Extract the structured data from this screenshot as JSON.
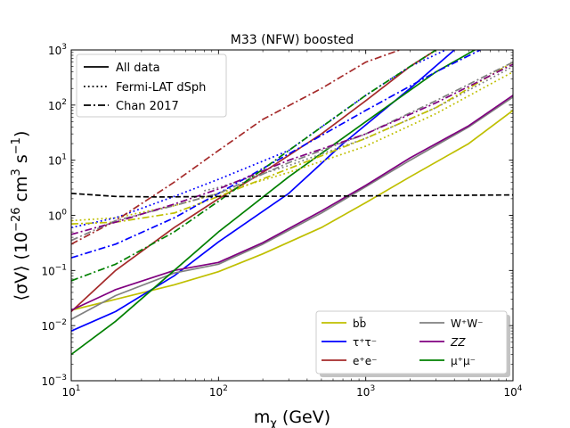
{
  "chart_data": {
    "type": "line",
    "title": "M33 (NFW) boosted",
    "xlabel": "m",
    "xlabel_sub": "χ",
    "xlabel_unit": " (GeV)",
    "ylabel_main": "⟨σV⟩ (10",
    "ylabel_exp1": "−26",
    "ylabel_mid": " cm",
    "ylabel_exp2": "3",
    "ylabel_mid2": " s",
    "ylabel_exp3": "−1",
    "ylabel_end": ")",
    "x_scale": "log",
    "y_scale": "log",
    "xlim": [
      10,
      10000
    ],
    "ylim": [
      0.001,
      1000
    ],
    "x_ticks": [
      {
        "value": 10,
        "base": "10",
        "exp": "1"
      },
      {
        "value": 100,
        "base": "10",
        "exp": "2"
      },
      {
        "value": 1000,
        "base": "10",
        "exp": "3"
      },
      {
        "value": 10000,
        "base": "10",
        "exp": "4"
      }
    ],
    "y_ticks": [
      {
        "value": 0.001,
        "base": "10",
        "exp": "−3"
      },
      {
        "value": 0.01,
        "base": "10",
        "exp": "−2"
      },
      {
        "value": 0.1,
        "base": "10",
        "exp": "−1"
      },
      {
        "value": 1,
        "base": "10",
        "exp": "0"
      },
      {
        "value": 10,
        "base": "10",
        "exp": "1"
      },
      {
        "value": 100,
        "base": "10",
        "exp": "2"
      },
      {
        "value": 1000,
        "base": "10",
        "exp": "3"
      }
    ],
    "linestyle_legend": {
      "position": "top-left",
      "entries": [
        {
          "label": "All data",
          "style": "solid"
        },
        {
          "label": "Fermi-LAT dSph",
          "style": "dotted"
        },
        {
          "label": "Chan 2017",
          "style": "dashdot"
        }
      ]
    },
    "channel_legend": {
      "position": "lower-right",
      "entries": [
        {
          "id": "bb",
          "label": "bb̄",
          "color": "#bfbf00"
        },
        {
          "id": "tau",
          "label": "τ⁺τ⁻",
          "color": "#0000ff"
        },
        {
          "id": "ee",
          "label": "e⁺e⁻",
          "color": "#a52a2a"
        },
        {
          "id": "ww",
          "label": "W⁺W⁻",
          "color": "#808080"
        },
        {
          "id": "zz",
          "label": "ZZ",
          "color": "#800080"
        },
        {
          "id": "mumu",
          "label": "μ⁺μ⁻",
          "color": "#008000"
        }
      ]
    },
    "reference_line": {
      "name": "thermal-relic",
      "color": "#000000",
      "style": "dashed",
      "x": [
        10,
        20,
        40,
        100,
        1000,
        10000
      ],
      "y": [
        2.5,
        2.2,
        2.15,
        2.2,
        2.25,
        2.35
      ]
    },
    "series": [
      {
        "name": "bb all data",
        "channel": "bb",
        "color": "#bfbf00",
        "style": "solid",
        "x": [
          10,
          20,
          50,
          100,
          200,
          500,
          1000,
          2000,
          5000,
          10000
        ],
        "y": [
          0.019,
          0.03,
          0.055,
          0.095,
          0.2,
          0.6,
          1.7,
          5,
          20,
          80
        ]
      },
      {
        "name": "tau all data",
        "channel": "tau",
        "color": "#0000ff",
        "style": "solid",
        "x": [
          10,
          20,
          50,
          100,
          300,
          700,
          2000,
          4000
        ],
        "y": [
          0.008,
          0.018,
          0.08,
          0.33,
          2.5,
          20,
          200,
          1000
        ]
      },
      {
        "name": "ee all data",
        "channel": "ee",
        "color": "#a52a2a",
        "style": "solid",
        "x": [
          10,
          20,
          50,
          100,
          200,
          500,
          1000,
          2000,
          3000
        ],
        "y": [
          0.018,
          0.1,
          0.6,
          2,
          6,
          30,
          120,
          500,
          1000
        ]
      },
      {
        "name": "ww all data",
        "channel": "ww",
        "color": "#808080",
        "style": "solid",
        "x": [
          10,
          20,
          50,
          100,
          200,
          500,
          1000,
          2000,
          5000,
          10000
        ],
        "y": [
          0.013,
          0.035,
          0.09,
          0.13,
          0.3,
          1.1,
          3.3,
          10,
          40,
          140
        ]
      },
      {
        "name": "zz all data",
        "channel": "zz",
        "color": "#800080",
        "style": "solid",
        "x": [
          10,
          20,
          50,
          100,
          200,
          500,
          1000,
          2000,
          5000,
          10000
        ],
        "y": [
          0.019,
          0.045,
          0.1,
          0.14,
          0.32,
          1.2,
          3.5,
          11,
          42,
          150
        ]
      },
      {
        "name": "mumu all data",
        "channel": "mumu",
        "color": "#008000",
        "style": "solid",
        "x": [
          10,
          20,
          50,
          100,
          300,
          1000,
          3000,
          5500
        ],
        "y": [
          0.003,
          0.012,
          0.1,
          0.5,
          5,
          50,
          400,
          1000
        ]
      },
      {
        "name": "bb fermi",
        "channel": "bb",
        "color": "#bfbf00",
        "style": "dotted",
        "x": [
          10,
          20,
          50,
          100,
          300,
          1000,
          3000,
          10000
        ],
        "y": [
          0.8,
          0.9,
          1.5,
          2.5,
          6,
          18,
          70,
          400
        ]
      },
      {
        "name": "tau fermi",
        "channel": "tau",
        "color": "#0000ff",
        "style": "dotted",
        "x": [
          10,
          20,
          50,
          100,
          300,
          500,
          1000,
          2000,
          3500
        ],
        "y": [
          0.6,
          0.9,
          2.2,
          4.5,
          15,
          40,
          150,
          500,
          1000
        ]
      },
      {
        "name": "ww fermi",
        "channel": "ww",
        "color": "#808080",
        "style": "dotted",
        "x": [
          80,
          100,
          300,
          1000,
          3000,
          10000
        ],
        "y": [
          2.8,
          3.2,
          8,
          25,
          90,
          500
        ]
      },
      {
        "name": "bb chan",
        "channel": "bb",
        "color": "#bfbf00",
        "style": "dashdot",
        "x": [
          10,
          20,
          50,
          100,
          300,
          1000,
          3000,
          10000
        ],
        "y": [
          0.7,
          0.75,
          1.1,
          2.2,
          7,
          25,
          90,
          600
        ]
      },
      {
        "name": "tau chan",
        "channel": "tau",
        "color": "#0000ff",
        "style": "dashdot",
        "x": [
          10,
          20,
          50,
          100,
          300,
          1000,
          3000,
          6000
        ],
        "y": [
          0.17,
          0.3,
          0.9,
          2.5,
          13,
          80,
          400,
          1000
        ]
      },
      {
        "name": "ee chan",
        "channel": "ee",
        "color": "#a52a2a",
        "style": "dashdot",
        "x": [
          10,
          20,
          50,
          100,
          200,
          500,
          1000,
          1700
        ],
        "y": [
          0.3,
          0.8,
          4,
          15,
          55,
          200,
          600,
          1000
        ]
      },
      {
        "name": "ww chan",
        "channel": "ww",
        "color": "#808080",
        "style": "dashdot",
        "x": [
          10,
          20,
          50,
          100,
          300,
          1000,
          3000,
          10000
        ],
        "y": [
          0.35,
          0.8,
          1.5,
          2.5,
          9,
          30,
          120,
          600
        ]
      },
      {
        "name": "zz chan",
        "channel": "zz",
        "color": "#800080",
        "style": "dashdot",
        "x": [
          10,
          20,
          50,
          100,
          300,
          1000,
          3000,
          10000
        ],
        "y": [
          0.45,
          0.75,
          1.6,
          3,
          10,
          30,
          110,
          550
        ]
      },
      {
        "name": "mumu chan",
        "channel": "mumu",
        "color": "#008000",
        "style": "dashdot",
        "x": [
          10,
          20,
          50,
          100,
          300,
          1000,
          2000,
          3000
        ],
        "y": [
          0.065,
          0.13,
          0.5,
          1.8,
          15,
          150,
          500,
          1000
        ]
      }
    ]
  }
}
